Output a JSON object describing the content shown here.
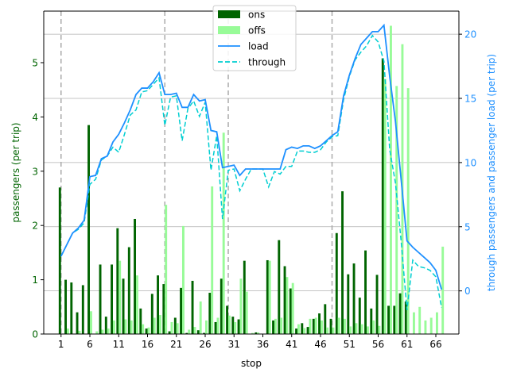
{
  "chart_data": {
    "type": "bar",
    "xlabel": "stop",
    "ylabel_left": "passengers (per trip)",
    "ylabel_right": "through passengers and passenger load (per trip)",
    "x_ticks": [
      1,
      6,
      11,
      16,
      21,
      26,
      31,
      36,
      41,
      46,
      51,
      56,
      61,
      66
    ],
    "y_left_ticks": [
      0,
      1,
      2,
      3,
      4,
      5
    ],
    "y_right_ticks": [
      0,
      5,
      10,
      15,
      20
    ],
    "xlim": [
      -2,
      70
    ],
    "ylim_left": [
      0,
      5.95
    ],
    "ylim_right": [
      -3.36,
      21.8
    ],
    "dashed_vlines_x": [
      1,
      19,
      30,
      48
    ],
    "grid": "horizontal lines at right-axis ticks",
    "colors": {
      "ons": "#006400",
      "offs": "#98FB98",
      "load": "#1E90FF",
      "through": "#00CED1",
      "left_axis": "#006400",
      "right_axis": "#1E90FF",
      "grid": "#b0b0b0",
      "vlines": "#aaaaaa"
    },
    "legend": {
      "position": "top-center",
      "entries": [
        {
          "label": "ons",
          "kind": "bar",
          "color": "#006400"
        },
        {
          "label": "offs",
          "kind": "bar",
          "color": "#98FB98"
        },
        {
          "label": "load",
          "kind": "line",
          "color": "#1E90FF"
        },
        {
          "label": "through",
          "kind": "dashed",
          "color": "#00CED1"
        }
      ]
    },
    "stops": [
      1,
      2,
      3,
      4,
      5,
      6,
      7,
      8,
      9,
      10,
      11,
      12,
      13,
      14,
      15,
      16,
      17,
      18,
      19,
      20,
      21,
      22,
      23,
      24,
      25,
      26,
      27,
      28,
      29,
      30,
      31,
      32,
      33,
      34,
      35,
      36,
      37,
      38,
      39,
      40,
      41,
      42,
      43,
      44,
      45,
      46,
      47,
      48,
      49,
      50,
      51,
      52,
      53,
      54,
      55,
      56,
      57,
      58,
      59,
      60,
      61,
      62,
      63,
      64,
      65,
      66,
      67
    ],
    "series": [
      {
        "name": "ons",
        "axis": "left",
        "values": [
          2.7,
          1.0,
          0.95,
          0.4,
          0.9,
          3.85,
          0.0,
          1.28,
          0.32,
          1.28,
          1.95,
          1.02,
          1.6,
          2.12,
          0.47,
          0.1,
          0.74,
          1.08,
          0.92,
          0.05,
          0.3,
          0.85,
          0.02,
          0.98,
          0.07,
          0.02,
          0.76,
          0.22,
          1.02,
          0.52,
          0.32,
          0.27,
          1.35,
          0.0,
          0.03,
          0.0,
          1.36,
          0.25,
          1.73,
          1.25,
          0.84,
          0.1,
          0.2,
          0.13,
          0.28,
          0.38,
          0.55,
          0.28,
          1.86,
          2.63,
          1.1,
          1.3,
          0.67,
          1.54,
          0.47,
          1.09,
          5.08,
          0.52,
          0.52,
          0.75,
          0.6,
          0.0,
          0.0,
          0.0,
          0.0,
          0.0,
          0.0
        ]
      },
      {
        "name": "offs",
        "axis": "left",
        "values": [
          0.0,
          0.1,
          0.0,
          0.06,
          0.0,
          0.42,
          0.05,
          0.08,
          0.1,
          0.25,
          1.35,
          0.27,
          0.25,
          1.08,
          0.18,
          0.12,
          0.3,
          0.35,
          2.38,
          0.22,
          0.2,
          1.99,
          0.08,
          0.13,
          0.6,
          0.25,
          2.72,
          0.3,
          3.71,
          0.34,
          0.22,
          1.02,
          0.78,
          0.02,
          0.03,
          0.0,
          1.35,
          0.28,
          0.3,
          1.05,
          0.94,
          0.18,
          0.11,
          0.28,
          0.3,
          0.25,
          0.12,
          0.12,
          0.3,
          0.28,
          0.14,
          0.2,
          0.18,
          0.14,
          0.25,
          0.15,
          4.7,
          5.68,
          4.57,
          5.34,
          4.53,
          0.4,
          0.5,
          0.25,
          0.3,
          0.4,
          1.61
        ]
      },
      {
        "name": "load",
        "axis": "right",
        "values": [
          2.7,
          3.6,
          4.5,
          4.9,
          5.5,
          8.9,
          9.0,
          10.3,
          10.5,
          11.6,
          12.2,
          13.1,
          14.1,
          15.3,
          15.8,
          15.8,
          16.3,
          17.0,
          15.3,
          15.3,
          15.4,
          14.3,
          14.3,
          15.3,
          14.8,
          14.9,
          12.5,
          12.4,
          9.6,
          9.7,
          9.8,
          9.0,
          9.5,
          9.5,
          9.5,
          9.5,
          9.5,
          9.5,
          9.5,
          11.0,
          11.2,
          11.1,
          11.3,
          11.3,
          11.1,
          11.3,
          11.7,
          12.1,
          12.4,
          15.2,
          16.8,
          18.1,
          19.2,
          19.7,
          20.2,
          20.2,
          20.7,
          16.7,
          13.2,
          8.6,
          3.9,
          3.4,
          3.0,
          2.6,
          2.2,
          1.6,
          0.1
        ]
      },
      {
        "name": "through",
        "axis": "right",
        "values": [
          2.7,
          3.6,
          4.5,
          4.8,
          5.3,
          8.3,
          8.7,
          10.2,
          10.5,
          11.2,
          10.8,
          12.2,
          13.7,
          14.1,
          15.5,
          15.6,
          16.1,
          16.6,
          12.9,
          15.1,
          15.2,
          11.7,
          14.2,
          14.8,
          13.6,
          14.7,
          9.4,
          12.1,
          5.6,
          9.4,
          9.5,
          7.8,
          8.7,
          9.5,
          9.5,
          9.5,
          8.1,
          9.3,
          9.1,
          9.7,
          9.7,
          10.9,
          10.9,
          10.8,
          10.8,
          11.0,
          11.6,
          12.0,
          12.1,
          14.9,
          16.7,
          18.0,
          18.6,
          19.1,
          19.9,
          19.4,
          17.9,
          11.0,
          8.4,
          3.8,
          -1.5,
          2.4,
          1.9,
          1.8,
          1.6,
          1.1,
          -1.3
        ]
      }
    ]
  }
}
